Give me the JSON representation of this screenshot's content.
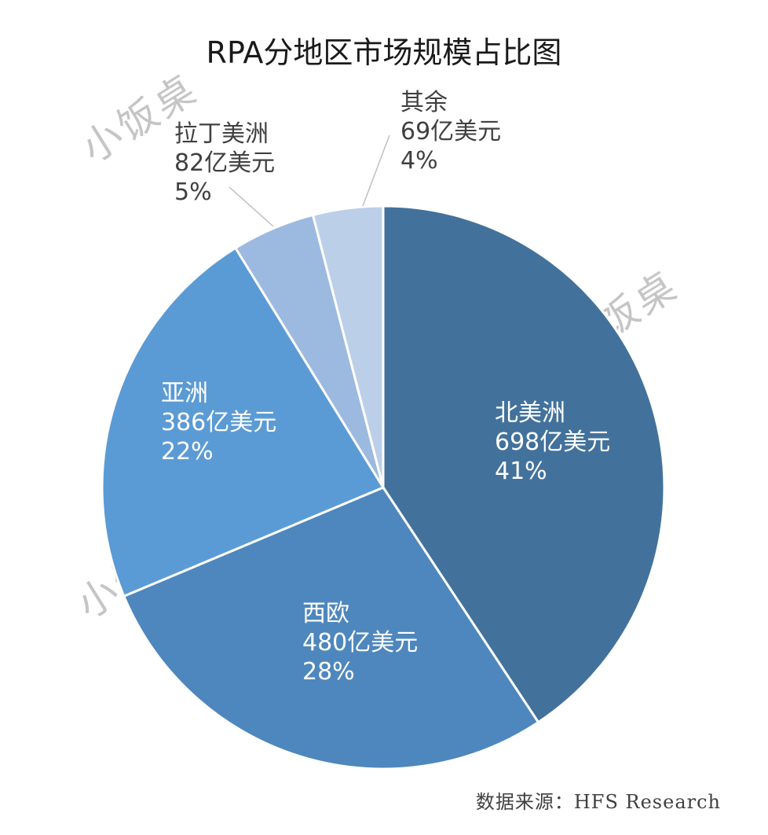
{
  "chart_data": {
    "type": "pie",
    "title": "RPA分地区市场规模占比图",
    "source": "数据来源：HFS Research",
    "watermark": "小饭桌",
    "slices": [
      {
        "name": "北美洲",
        "amount": "698亿美元",
        "value": 698,
        "percent": "41%",
        "color": "#42729c",
        "label_color": "#ffffff",
        "label_position": "inside"
      },
      {
        "name": "西欧",
        "amount": "480亿美元",
        "value": 480,
        "percent": "28%",
        "color": "#4e87bd",
        "label_color": "#ffffff",
        "label_position": "inside"
      },
      {
        "name": "亚洲",
        "amount": "386亿美元",
        "value": 386,
        "percent": "22%",
        "color": "#5b9bd5",
        "label_color": "#ffffff",
        "label_position": "inside"
      },
      {
        "name": "拉丁美洲",
        "amount": "82亿美元",
        "value": 82,
        "percent": "5%",
        "color": "#9cb9e0",
        "label_color": "#404040",
        "label_position": "outside"
      },
      {
        "name": "其余",
        "amount": "69亿美元",
        "value": 69,
        "percent": "4%",
        "color": "#bccfe9",
        "label_color": "#404040",
        "label_position": "outside"
      }
    ]
  }
}
